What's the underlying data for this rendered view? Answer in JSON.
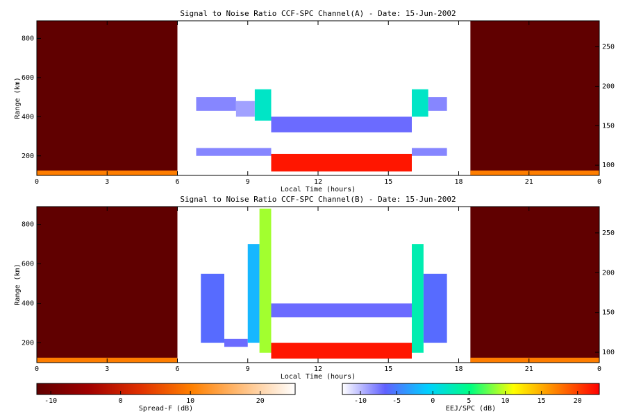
{
  "chart_data": [
    {
      "type": "heatmap",
      "title": "Signal to Noise Ratio CCF-SPC Channel(A) - Date: 15-Jun-2002",
      "xlabel": "Local Time (hours)",
      "ylabel": "Range (km)",
      "xlim": [
        0,
        24
      ],
      "xticks": [
        0,
        3,
        6,
        9,
        12,
        15,
        18,
        21,
        {
          "value": 24,
          "label": "0"
        }
      ],
      "ylim": [
        100,
        890
      ],
      "yticks": [
        200,
        400,
        600,
        800
      ],
      "y2lim": [
        87,
        283
      ],
      "y2ticks": [
        100,
        150,
        200,
        250
      ],
      "spread_f_blocks": [
        {
          "x": [
            0,
            6
          ],
          "y": [
            100,
            890
          ],
          "value": -12
        },
        {
          "x": [
            0,
            6
          ],
          "y": [
            100,
            125
          ],
          "value": 10
        },
        {
          "x": [
            18.5,
            24
          ],
          "y": [
            100,
            890
          ],
          "value": -12
        },
        {
          "x": [
            18.5,
            24
          ],
          "y": [
            100,
            125
          ],
          "value": 10
        }
      ],
      "eej_blocks": [
        {
          "x": [
            6.8,
            8.5
          ],
          "y": [
            430,
            500
          ],
          "value": -8
        },
        {
          "x": [
            8.5,
            9.3
          ],
          "y": [
            400,
            480
          ],
          "value": -9
        },
        {
          "x": [
            9.3,
            10
          ],
          "y": [
            380,
            540
          ],
          "value": 2
        },
        {
          "x": [
            6.8,
            10
          ],
          "y": [
            200,
            240
          ],
          "value": -8
        },
        {
          "x": [
            10,
            16
          ],
          "y": [
            320,
            400
          ],
          "value": -7
        },
        {
          "x": [
            10,
            16
          ],
          "y": [
            120,
            210
          ],
          "value": 22
        },
        {
          "x": [
            16,
            16.7
          ],
          "y": [
            400,
            540
          ],
          "value": 2
        },
        {
          "x": [
            16.7,
            17.5
          ],
          "y": [
            430,
            500
          ],
          "value": -8
        },
        {
          "x": [
            16,
            17.5
          ],
          "y": [
            200,
            240
          ],
          "value": -8
        }
      ]
    },
    {
      "type": "heatmap",
      "title": "Signal to Noise Ratio CCF-SPC Channel(B) - Date: 15-Jun-2002",
      "xlabel": "Local Time (hours)",
      "ylabel": "Range (km)",
      "xlim": [
        0,
        24
      ],
      "xticks": [
        0,
        3,
        6,
        9,
        12,
        15,
        18,
        21,
        {
          "value": 24,
          "label": "0"
        }
      ],
      "ylim": [
        100,
        890
      ],
      "yticks": [
        200,
        400,
        600,
        800
      ],
      "y2lim": [
        87,
        283
      ],
      "y2ticks": [
        100,
        150,
        200,
        250
      ],
      "spread_f_blocks": [
        {
          "x": [
            0,
            6
          ],
          "y": [
            100,
            890
          ],
          "value": -12
        },
        {
          "x": [
            0,
            6
          ],
          "y": [
            100,
            125
          ],
          "value": 10
        },
        {
          "x": [
            18.5,
            24
          ],
          "y": [
            100,
            890
          ],
          "value": -12
        },
        {
          "x": [
            18.5,
            24
          ],
          "y": [
            100,
            125
          ],
          "value": 10
        }
      ],
      "eej_blocks": [
        {
          "x": [
            7,
            8
          ],
          "y": [
            200,
            550
          ],
          "value": -6
        },
        {
          "x": [
            8,
            9
          ],
          "y": [
            180,
            220
          ],
          "value": -7
        },
        {
          "x": [
            9,
            9.5
          ],
          "y": [
            200,
            700
          ],
          "value": -2
        },
        {
          "x": [
            9.5,
            10
          ],
          "y": [
            150,
            880
          ],
          "value": 9
        },
        {
          "x": [
            10,
            16
          ],
          "y": [
            330,
            400
          ],
          "value": -7
        },
        {
          "x": [
            10,
            16
          ],
          "y": [
            120,
            200
          ],
          "value": 22
        },
        {
          "x": [
            16,
            16.5
          ],
          "y": [
            150,
            700
          ],
          "value": 3
        },
        {
          "x": [
            16.5,
            17.5
          ],
          "y": [
            200,
            550
          ],
          "value": -6
        }
      ]
    }
  ],
  "colorbars": [
    {
      "label": "Spread-F (dB)",
      "lim": [
        -12,
        25
      ],
      "ticks": [
        -10,
        0,
        10,
        20
      ],
      "colors": [
        "#600000",
        "#a00000",
        "#e03000",
        "#ff8000",
        "#ffc080",
        "#ffffff"
      ]
    },
    {
      "label": "EEJ/SPC (dB)",
      "lim": [
        -12.5,
        23
      ],
      "ticks": [
        -10,
        -5,
        0,
        5,
        10,
        15,
        20
      ],
      "colors": [
        "#ffffff",
        "#6060ff",
        "#00d0ff",
        "#00ff80",
        "#ffff00",
        "#ff8000",
        "#ff0000"
      ]
    }
  ]
}
